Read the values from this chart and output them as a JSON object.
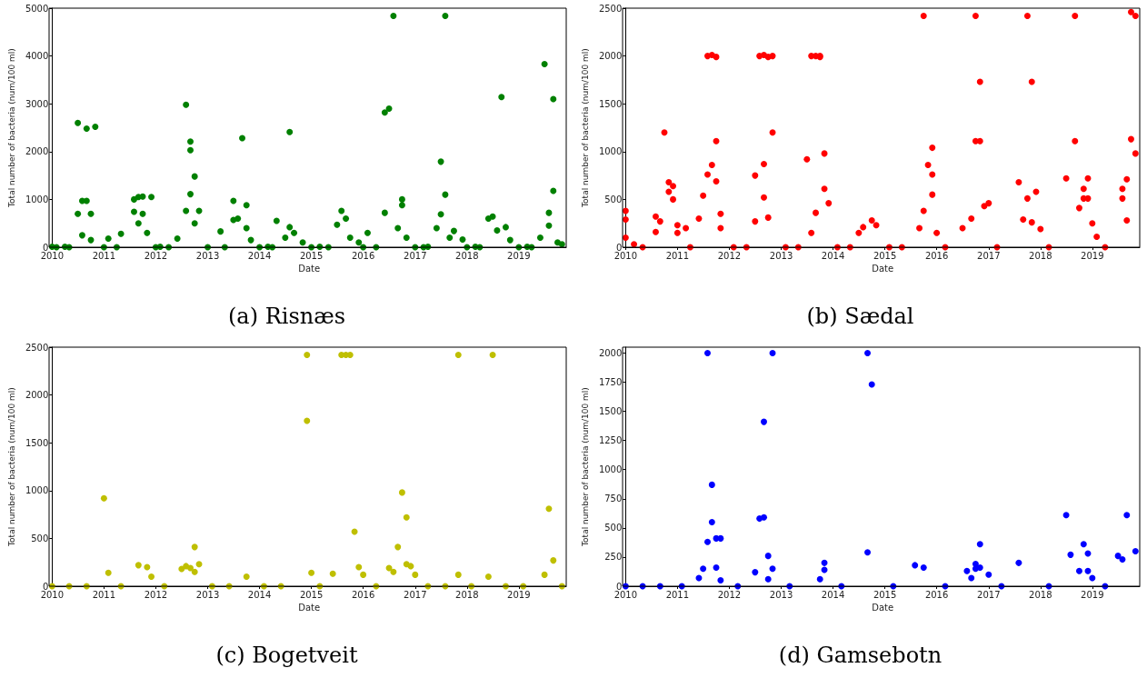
{
  "chart_data": [
    {
      "type": "scatter",
      "title": "(a) Risnæs",
      "xlabel": "Date",
      "ylabel": "Total number of bacteria (num/100 ml)",
      "xlim": [
        "2010-01",
        "2019-12"
      ],
      "xticks": [
        "2010",
        "2011",
        "2012",
        "2013",
        "2014",
        "2015",
        "2016",
        "2017",
        "2018",
        "2019"
      ],
      "ylim": [
        0,
        5000
      ],
      "yticks": [
        0,
        1000,
        2000,
        3000,
        4000,
        5000
      ],
      "marker": "circle",
      "series": [
        {
          "color": "#008000",
          "x": [
            "2010-01",
            "2010-04",
            "2010-07",
            "2010-07",
            "2010-08",
            "2010-09",
            "2010-09",
            "2010-10",
            "2010-11",
            "2010-08",
            "2010-10",
            "2011-02",
            "2011-05",
            "2011-08",
            "2011-08",
            "2011-09",
            "2011-10",
            "2011-09",
            "2011-10",
            "2011-11",
            "2011-12",
            "2012-02",
            "2012-06",
            "2012-08",
            "2012-08",
            "2012-09",
            "2012-09",
            "2012-10",
            "2012-09",
            "2012-10",
            "2012-11",
            "2013-04",
            "2013-07",
            "2013-07",
            "2013-08",
            "2013-09",
            "2013-10",
            "2013-10",
            "2013-11",
            "2014-03",
            "2014-05",
            "2014-07",
            "2014-08",
            "2014-08",
            "2014-09",
            "2014-11",
            "2015-03",
            "2015-07",
            "2015-08",
            "2015-09",
            "2015-10",
            "2015-12",
            "2016-02",
            "2016-06",
            "2016-06",
            "2016-07",
            "2016-08",
            "2016-09",
            "2016-10",
            "2016-10",
            "2016-11",
            "2017-04",
            "2017-06",
            "2017-07",
            "2017-07",
            "2017-08",
            "2017-08",
            "2017-09",
            "2017-10",
            "2017-12",
            "2018-03",
            "2018-06",
            "2018-07",
            "2018-08",
            "2018-09",
            "2018-10",
            "2018-11",
            "2019-03",
            "2019-06",
            "2019-07",
            "2019-08",
            "2019-08",
            "2019-09",
            "2019-09",
            "2019-10",
            "2019-11",
            "2010-02",
            "2010-05",
            "2011-01",
            "2011-04",
            "2012-01",
            "2012-04",
            "2013-01",
            "2013-05",
            "2014-01",
            "2014-04",
            "2015-01",
            "2015-05",
            "2016-01",
            "2016-04",
            "2017-01",
            "2017-03",
            "2018-01",
            "2018-04",
            "2019-01",
            "2019-04"
          ],
          "values": [
            10,
            10,
            2600,
            700,
            970,
            970,
            2480,
            700,
            2520,
            250,
            150,
            180,
            280,
            740,
            1000,
            1050,
            1060,
            500,
            700,
            300,
            1050,
            10,
            180,
            2980,
            760,
            2210,
            2030,
            1480,
            1110,
            500,
            760,
            330,
            570,
            970,
            600,
            2280,
            880,
            400,
            150,
            10,
            550,
            200,
            2410,
            420,
            300,
            100,
            10,
            470,
            760,
            600,
            200,
            100,
            300,
            2820,
            720,
            2900,
            4840,
            400,
            1000,
            880,
            200,
            10,
            400,
            690,
            1790,
            4840,
            1100,
            200,
            340,
            160,
            10,
            600,
            640,
            350,
            3140,
            420,
            150,
            10,
            200,
            3830,
            720,
            450,
            1180,
            3100,
            100,
            60,
            0,
            0,
            0,
            0,
            0,
            0,
            0,
            0,
            0,
            0,
            0,
            0,
            0,
            0,
            0,
            0,
            0,
            0,
            0,
            0
          ]
        }
      ]
    },
    {
      "type": "scatter",
      "title": "(b) Sædal",
      "xlabel": "Date",
      "ylabel": "Total number of bacteria (num/100 ml)",
      "xlim": [
        "2010-01",
        "2019-12"
      ],
      "xticks": [
        "2010",
        "2011",
        "2012",
        "2013",
        "2014",
        "2015",
        "2016",
        "2017",
        "2018",
        "2019"
      ],
      "ylim": [
        0,
        2500
      ],
      "yticks": [
        0,
        500,
        1000,
        1500,
        2000,
        2500
      ],
      "marker": "circle",
      "series": [
        {
          "color": "#ff0000",
          "x": [
            "2010-01",
            "2010-01",
            "2010-01",
            "2010-03",
            "2010-08",
            "2010-08",
            "2010-09",
            "2010-10",
            "2010-11",
            "2010-11",
            "2010-12",
            "2010-12",
            "2011-01",
            "2011-01",
            "2011-03",
            "2011-06",
            "2011-07",
            "2011-08",
            "2011-08",
            "2011-09",
            "2011-09",
            "2011-10",
            "2011-10",
            "2011-10",
            "2011-11",
            "2011-11",
            "2012-07",
            "2012-07",
            "2012-08",
            "2012-09",
            "2012-09",
            "2012-09",
            "2012-10",
            "2012-10",
            "2012-11",
            "2012-11",
            "2013-07",
            "2013-08",
            "2013-08",
            "2013-09",
            "2013-09",
            "2013-10",
            "2013-10",
            "2013-11",
            "2013-11",
            "2013-12",
            "2014-07",
            "2014-08",
            "2014-10",
            "2014-11",
            "2015-09",
            "2015-10",
            "2015-10",
            "2015-11",
            "2015-12",
            "2015-12",
            "2015-12",
            "2016-01",
            "2016-07",
            "2016-09",
            "2016-10",
            "2016-10",
            "2016-11",
            "2016-11",
            "2016-12",
            "2017-01",
            "2017-08",
            "2017-09",
            "2017-10",
            "2017-10",
            "2017-11",
            "2017-11",
            "2017-12",
            "2018-01",
            "2018-07",
            "2018-09",
            "2018-09",
            "2018-10",
            "2018-11",
            "2018-11",
            "2018-12",
            "2018-12",
            "2019-01",
            "2019-02",
            "2019-08",
            "2019-08",
            "2019-09",
            "2019-09",
            "2019-10",
            "2019-10",
            "2019-11",
            "2019-11",
            "2010-05",
            "2011-04",
            "2012-02",
            "2012-05",
            "2013-02",
            "2013-05",
            "2014-02",
            "2014-05",
            "2015-02",
            "2015-05",
            "2016-03",
            "2017-03",
            "2018-03",
            "2019-04"
          ],
          "values": [
            290,
            380,
            100,
            30,
            160,
            320,
            270,
            1200,
            680,
            580,
            500,
            640,
            230,
            150,
            200,
            300,
            540,
            2000,
            760,
            2010,
            860,
            1990,
            1110,
            690,
            350,
            200,
            750,
            270,
            2000,
            2010,
            870,
            520,
            1990,
            310,
            2000,
            1200,
            920,
            2000,
            150,
            2000,
            360,
            1990,
            2000,
            980,
            610,
            460,
            150,
            210,
            280,
            230,
            200,
            2420,
            380,
            860,
            760,
            1040,
            550,
            150,
            200,
            300,
            2420,
            1110,
            1110,
            1730,
            430,
            460,
            680,
            290,
            510,
            2420,
            1730,
            260,
            580,
            190,
            720,
            1110,
            2420,
            410,
            610,
            510,
            720,
            510,
            250,
            110,
            610,
            510,
            280,
            710,
            2460,
            1130,
            2420,
            980,
            0,
            0,
            0,
            0,
            0,
            0,
            0,
            0,
            0,
            0,
            0,
            0,
            0,
            0
          ]
        }
      ]
    },
    {
      "type": "scatter",
      "title": "(c) Bogetveit",
      "xlabel": "Date",
      "ylabel": "Total number of bacteria (num/100 ml)",
      "xlim": [
        "2010-01",
        "2019-12"
      ],
      "xticks": [
        "2010",
        "2011",
        "2012",
        "2013",
        "2014",
        "2015",
        "2016",
        "2017",
        "2018",
        "2019"
      ],
      "ylim": [
        0,
        2500
      ],
      "yticks": [
        0,
        500,
        1000,
        1500,
        2000,
        2500
      ],
      "marker": "circle",
      "series": [
        {
          "color": "#bfbf00",
          "x": [
            "2011-01",
            "2011-02",
            "2011-09",
            "2011-11",
            "2011-12",
            "2012-07",
            "2012-08",
            "2012-09",
            "2012-10",
            "2012-10",
            "2012-11",
            "2013-10",
            "2014-12",
            "2014-12",
            "2015-01",
            "2015-06",
            "2015-08",
            "2015-09",
            "2015-10",
            "2015-11",
            "2015-12",
            "2016-01",
            "2016-07",
            "2016-08",
            "2016-09",
            "2016-10",
            "2016-11",
            "2016-11",
            "2016-12",
            "2017-01",
            "2017-11",
            "2017-11",
            "2018-06",
            "2018-07",
            "2019-07",
            "2019-08",
            "2019-09",
            "2010-01",
            "2010-05",
            "2010-09",
            "2011-05",
            "2012-03",
            "2013-02",
            "2013-06",
            "2014-02",
            "2014-06",
            "2015-03",
            "2016-04",
            "2017-04",
            "2017-08",
            "2018-02",
            "2018-10",
            "2019-02",
            "2019-11"
          ],
          "values": [
            920,
            140,
            220,
            200,
            100,
            180,
            210,
            190,
            150,
            410,
            230,
            100,
            2420,
            1730,
            140,
            130,
            2420,
            2420,
            2420,
            570,
            200,
            120,
            190,
            150,
            410,
            980,
            720,
            230,
            210,
            120,
            120,
            2420,
            100,
            2420,
            120,
            810,
            270,
            0,
            0,
            0,
            0,
            0,
            0,
            0,
            0,
            0,
            0,
            0,
            0,
            0,
            0,
            0,
            0,
            0
          ]
        }
      ]
    },
    {
      "type": "scatter",
      "title": "(d) Gamsebotn",
      "xlabel": "Date",
      "ylabel": "Total number of bacteria (num/100 ml)",
      "xlim": [
        "2010-01",
        "2019-12"
      ],
      "xticks": [
        "2010",
        "2011",
        "2012",
        "2013",
        "2014",
        "2015",
        "2016",
        "2017",
        "2018",
        "2019"
      ],
      "ylim": [
        0,
        2050
      ],
      "yticks": [
        0,
        250,
        500,
        750,
        1000,
        1250,
        1500,
        1750,
        2000
      ],
      "marker": "circle",
      "series": [
        {
          "color": "#0000ff",
          "x": [
            "2011-06",
            "2011-07",
            "2011-08",
            "2011-08",
            "2011-09",
            "2011-09",
            "2011-10",
            "2011-10",
            "2011-11",
            "2011-11",
            "2012-07",
            "2012-08",
            "2012-09",
            "2012-09",
            "2012-10",
            "2012-10",
            "2012-11",
            "2012-11",
            "2013-10",
            "2013-11",
            "2013-11",
            "2014-09",
            "2014-09",
            "2014-10",
            "2015-08",
            "2015-10",
            "2016-08",
            "2016-09",
            "2016-10",
            "2016-10",
            "2016-11",
            "2016-11",
            "2017-01",
            "2017-08",
            "2018-07",
            "2018-08",
            "2018-10",
            "2018-11",
            "2018-12",
            "2018-12",
            "2019-01",
            "2019-07",
            "2019-08",
            "2019-09",
            "2019-11",
            "2010-01",
            "2010-05",
            "2010-09",
            "2011-02",
            "2012-03",
            "2013-03",
            "2014-03",
            "2015-03",
            "2016-03",
            "2017-04",
            "2018-03",
            "2019-04"
          ],
          "values": [
            70,
            150,
            380,
            2000,
            870,
            550,
            410,
            160,
            410,
            50,
            120,
            580,
            1410,
            590,
            260,
            60,
            150,
            2000,
            60,
            140,
            200,
            2000,
            290,
            1730,
            180,
            160,
            130,
            70,
            190,
            150,
            360,
            160,
            100,
            200,
            610,
            270,
            130,
            360,
            280,
            130,
            70,
            260,
            230,
            610,
            300,
            0,
            0,
            0,
            0,
            0,
            0,
            0,
            0,
            0,
            0,
            0,
            0
          ]
        }
      ]
    }
  ]
}
